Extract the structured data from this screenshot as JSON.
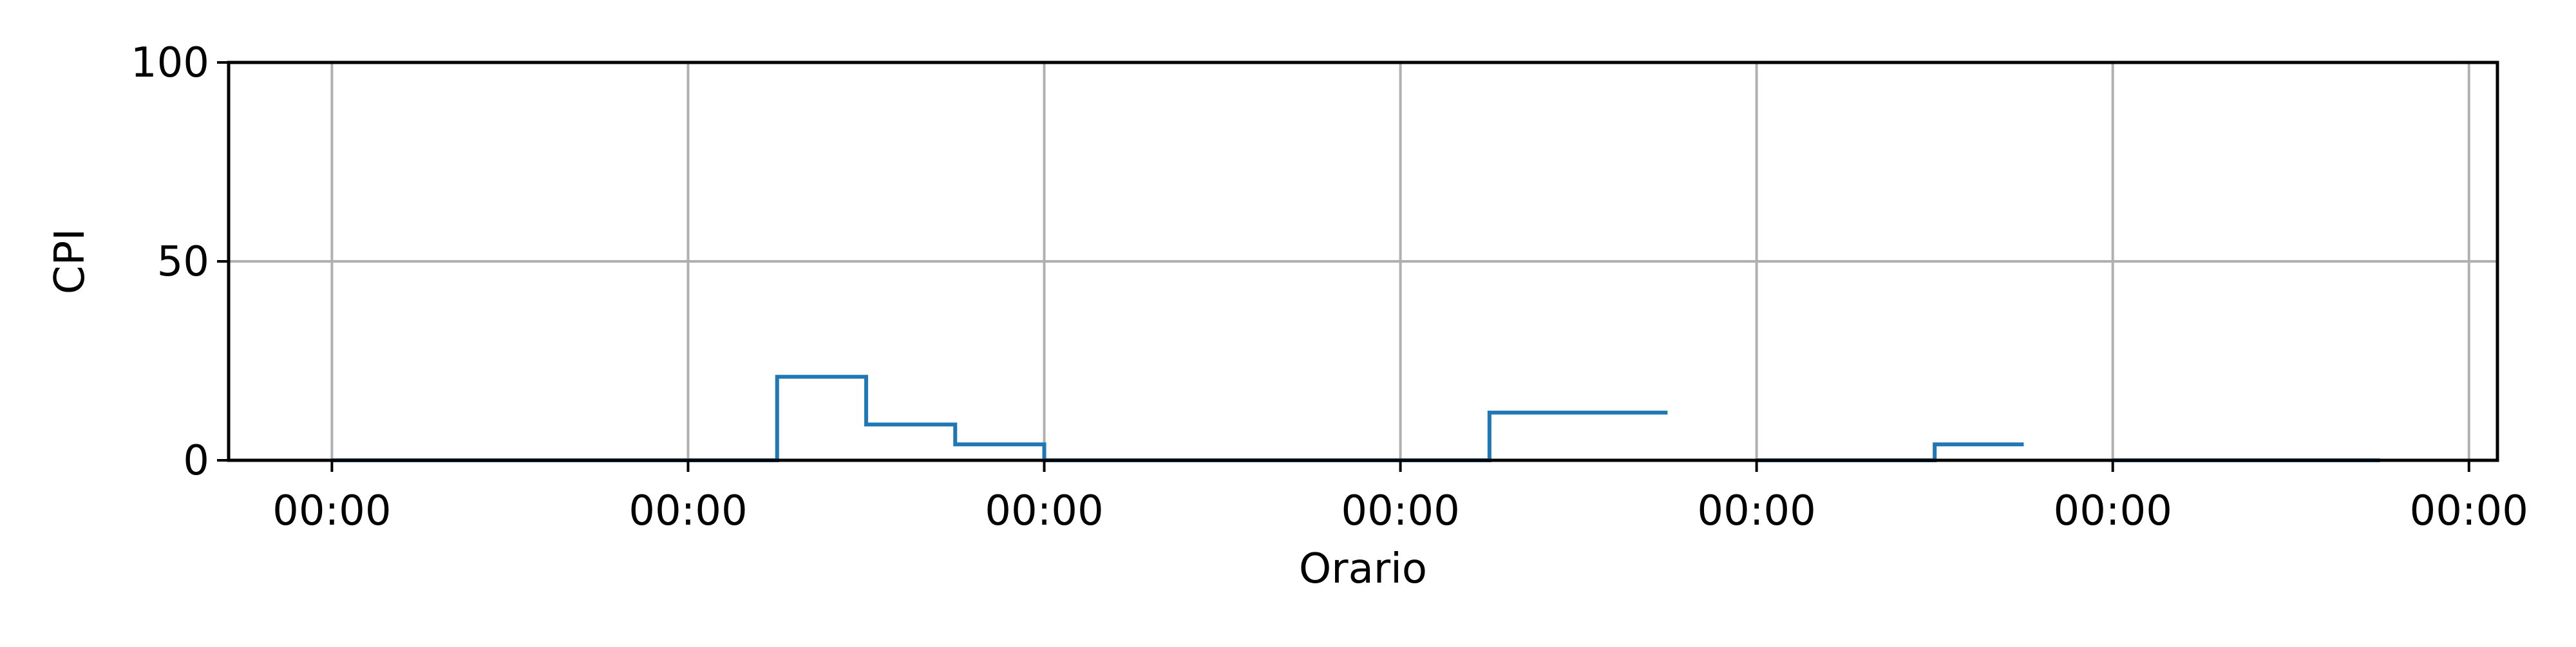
{
  "chart_data": {
    "type": "line",
    "step": "post",
    "xlabel": "Orario",
    "ylabel": "CPI",
    "ylim": [
      0,
      100
    ],
    "yticks": [
      0,
      50,
      100
    ],
    "xlim": [
      -0.29,
      6.08
    ],
    "xticks": [
      0,
      1,
      2,
      3,
      4,
      5,
      6
    ],
    "xtick_labels": [
      "00:00",
      "00:00",
      "00:00",
      "00:00",
      "00:00",
      "00:00",
      "00:00"
    ],
    "grid": true,
    "colors": {
      "series": "#1f77b4",
      "grid": "#b0b0b0",
      "axes": "#000000"
    },
    "series": [
      {
        "segments": [
          {
            "x": [
              0,
              1.25,
              1.5,
              1.75,
              2,
              2.25,
              2.5,
              2.75,
              3,
              3.25,
              3.5,
              3.75
            ],
            "y": [
              0,
              21,
              9,
              4,
              0,
              0,
              0,
              0,
              0,
              12,
              12,
              12
            ]
          },
          {
            "x": [
              4,
              4.25,
              4.5,
              4.75
            ],
            "y": [
              0,
              0,
              4,
              4
            ]
          },
          {
            "x": [
              5,
              5.25,
              5.5,
              5.75
            ],
            "y": [
              0,
              0,
              0,
              0
            ]
          }
        ]
      }
    ]
  }
}
